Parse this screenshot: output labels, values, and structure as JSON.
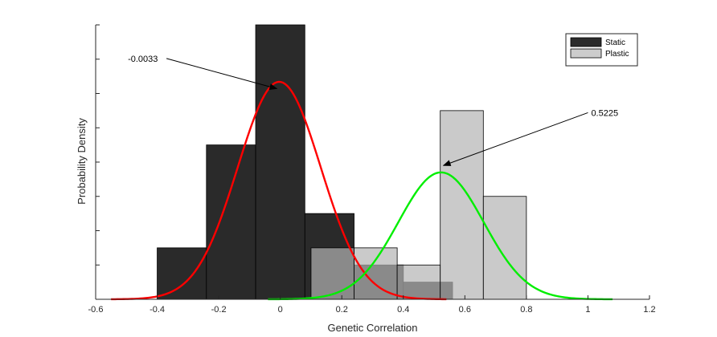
{
  "chart_data": {
    "type": "bar",
    "title": "",
    "xlabel": "Genetic Correlation",
    "ylabel": "Probability Density",
    "xlim": [
      -0.6,
      1.2
    ],
    "ylim": [
      0,
      4.0
    ],
    "xticks": [
      "-0.6",
      "-0.4",
      "-0.2",
      "0",
      "0.2",
      "0.4",
      "0.6",
      "0.8",
      "1",
      "1.2"
    ],
    "yticks_count": 8,
    "legend": {
      "placement": "top-right",
      "entries": [
        {
          "label": "Static",
          "color": "#2b2b2b"
        },
        {
          "label": "Plastic",
          "color": "#cccccc"
        }
      ]
    },
    "histograms": [
      {
        "name": "Static",
        "color": "#262626",
        "opacity": 0.98,
        "bins": [
          {
            "x0": -0.4,
            "x1": -0.24,
            "value": 0.75
          },
          {
            "x0": -0.24,
            "x1": -0.08,
            "value": 2.25
          },
          {
            "x0": -0.08,
            "x1": 0.08,
            "value": 4.0
          },
          {
            "x0": 0.08,
            "x1": 0.24,
            "value": 1.25
          },
          {
            "x0": 0.24,
            "x1": 0.4,
            "value": 0.5
          },
          {
            "x0": 0.4,
            "x1": 0.56,
            "value": 0.25
          }
        ]
      },
      {
        "name": "Plastic",
        "color": "#b4b4b4",
        "opacity": 0.7,
        "bins": [
          {
            "x0": 0.1,
            "x1": 0.24,
            "value": 0.75
          },
          {
            "x0": 0.24,
            "x1": 0.38,
            "value": 0.75
          },
          {
            "x0": 0.38,
            "x1": 0.52,
            "value": 0.5
          },
          {
            "x0": 0.52,
            "x1": 0.66,
            "value": 2.75
          },
          {
            "x0": 0.66,
            "x1": 0.8,
            "value": 1.5
          }
        ]
      }
    ],
    "curves": [
      {
        "name": "Static fit",
        "color": "#ff0000",
        "mean": -0.0033,
        "sd": 0.135,
        "peak": 3.17,
        "xmin": -0.55,
        "xmax": 0.54
      },
      {
        "name": "Plastic fit",
        "color": "#00ee00",
        "mean": 0.5225,
        "sd": 0.139,
        "peak": 1.85,
        "xmin": -0.04,
        "xmax": 1.08
      }
    ],
    "annotations": [
      {
        "text": "-0.0033",
        "target_x": -0.0033,
        "target_y": 3.07,
        "label_x": -0.49,
        "label_y": 3.51
      },
      {
        "text": "0.5225",
        "target_x": 0.5225,
        "target_y": 1.95,
        "label_x": 1.0,
        "label_y": 2.72
      }
    ]
  }
}
